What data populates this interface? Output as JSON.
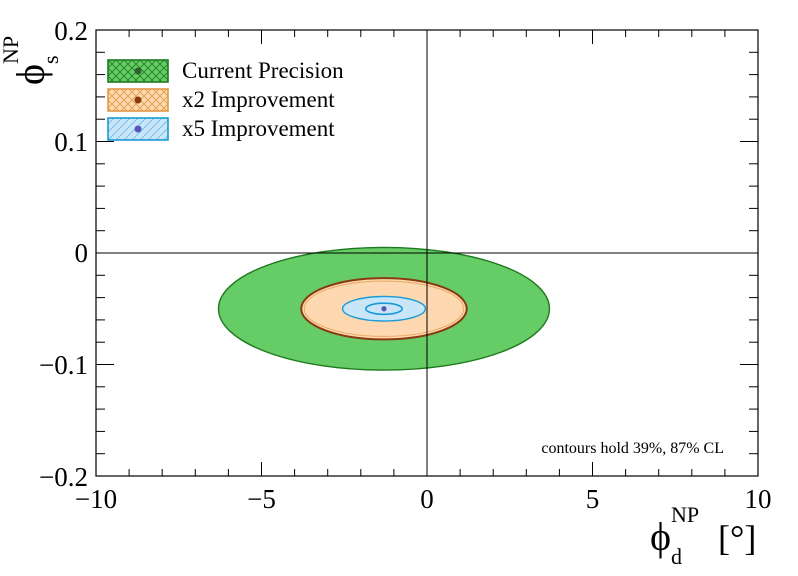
{
  "chart_data": {
    "type": "contour",
    "xlim": [
      -10,
      10
    ],
    "ylim": [
      -0.2,
      0.2
    ],
    "x_ticks": [
      -10,
      -5,
      0,
      5,
      10
    ],
    "x_tick_labels": [
      "−10",
      "−5",
      "0",
      "5",
      "10"
    ],
    "y_ticks": [
      -0.2,
      -0.1,
      0,
      0.1,
      0.2
    ],
    "y_tick_labels": [
      "−0.2",
      "−0.1",
      "0",
      "0.1",
      "0.2"
    ],
    "xlabel": {
      "symbol": "ϕ",
      "sub": "d",
      "sup": "NP",
      "unit": "[°]"
    },
    "ylabel": {
      "symbol": "ϕ",
      "sub": "s",
      "sup": "NP"
    },
    "reference_lines": {
      "x": 0,
      "y": 0
    },
    "annotation": "contours hold 39%, 87% CL",
    "series": [
      {
        "name": "Current Precision",
        "center": [
          -1.3,
          -0.05
        ],
        "fill_color": "#66cc66",
        "line_color": "#1f7a1f",
        "point_color": "#2f5f2f",
        "contours": [
          {
            "cl": "87%",
            "sigma_x": 5.0,
            "sigma_y": 0.055
          }
        ]
      },
      {
        "name": "x2 Improvement",
        "center": [
          -1.3,
          -0.05
        ],
        "fill_color": "#fdd8b0",
        "line_color": "#8a3a10",
        "point_color": "#8a3a10",
        "contours": [
          {
            "cl": "87%",
            "sigma_x": 2.5,
            "sigma_y": 0.0275
          }
        ]
      },
      {
        "name": "x5 Improvement",
        "center": [
          -1.3,
          -0.05
        ],
        "fill_color": "#c8e6f8",
        "line_color": "#1a9ad8",
        "point_color": "#5555bb",
        "contours": [
          {
            "cl": "87%",
            "sigma_x": 1.25,
            "sigma_y": 0.011
          },
          {
            "cl": "39%",
            "sigma_x": 0.55,
            "sigma_y": 0.005
          }
        ]
      }
    ],
    "legend": {
      "position": "top-left",
      "entries": [
        {
          "label": "Current Precision",
          "fill": "#66cc66",
          "border": "#1f7a1f",
          "marker": "#2f5f2f",
          "hatch": "#1f7a1f"
        },
        {
          "label": "x2 Improvement",
          "fill": "#fdd8b0",
          "border": "#e09a45",
          "marker": "#8a3a10",
          "hatch": "#e09a45"
        },
        {
          "label": "x5 Improvement",
          "fill": "#c8e6f8",
          "border": "#1a9ad8",
          "marker": "#5555bb",
          "hatch": "#6ab8e6"
        }
      ]
    }
  }
}
